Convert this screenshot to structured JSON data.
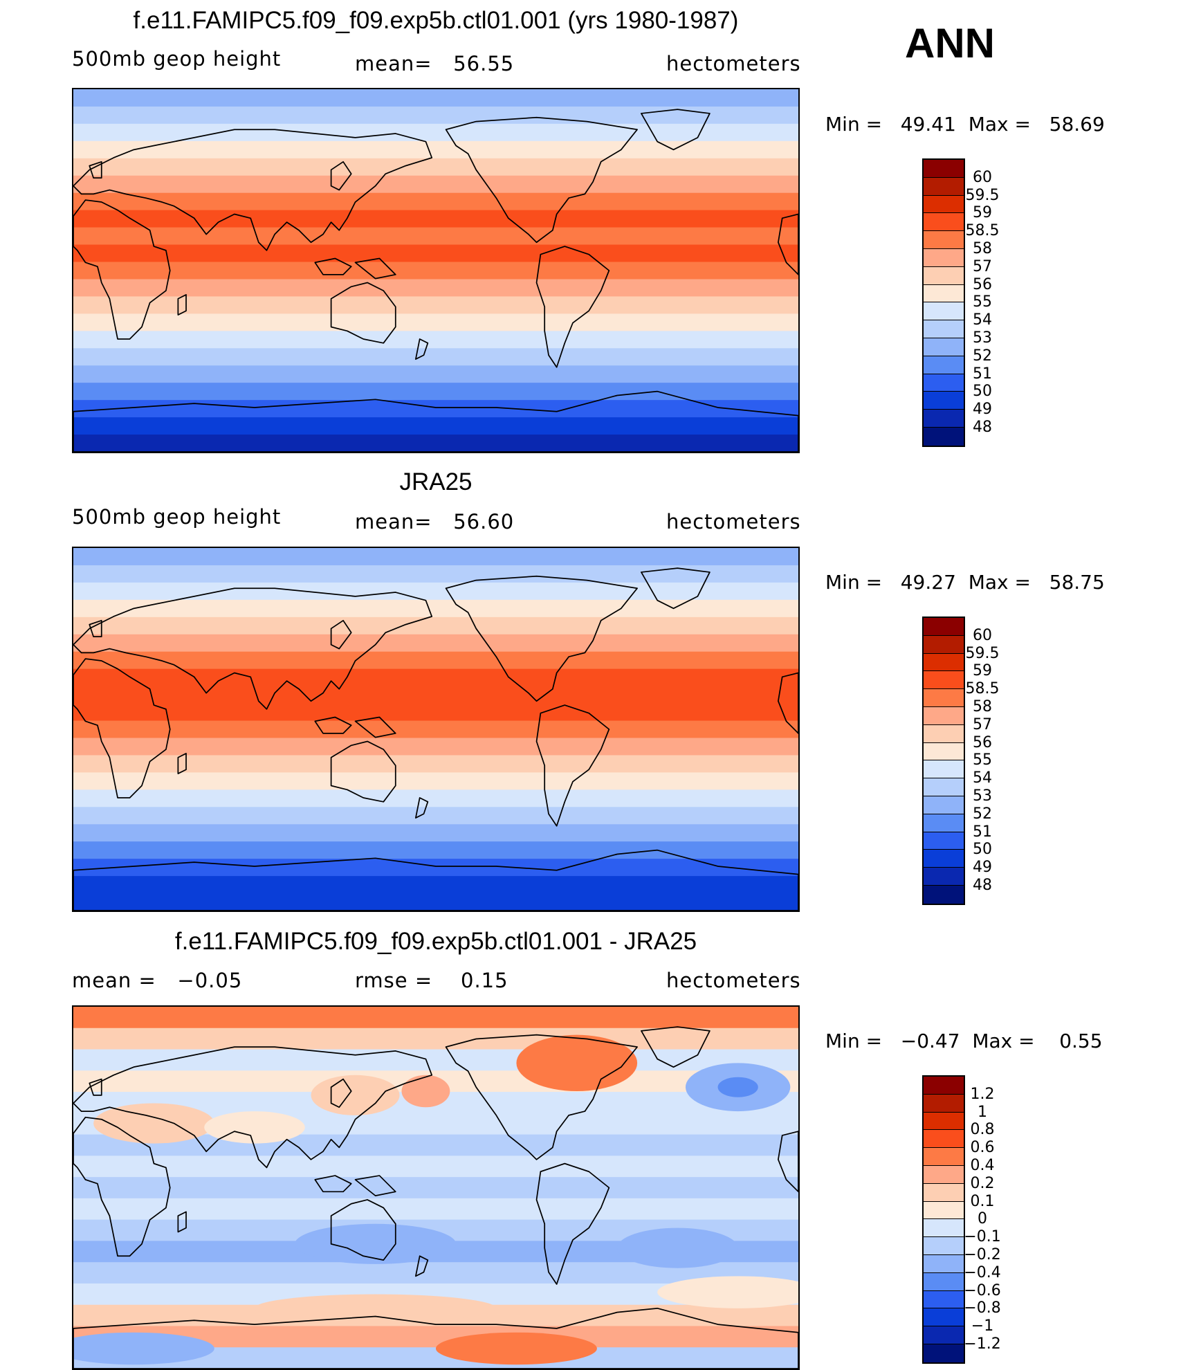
{
  "season": "ANN",
  "units": "hectometers",
  "panels": [
    {
      "title": "f.e11.FAMIPC5.f09_f09.exp5b.ctl01.001 (yrs 1980-1987)",
      "left_label": "500mb geop height",
      "center_label": "mean=   56.55",
      "right_label": "hectometers",
      "minmax": "Min =   49.41  Max =   58.69",
      "colorbar_labels": [
        "60",
        "59.5",
        "59",
        "58.5",
        "58",
        "57",
        "56",
        "55",
        "54",
        "53",
        "52",
        "51",
        "50",
        "49",
        "48"
      ],
      "colorbar_colors": [
        "#8b0000",
        "#b31c00",
        "#dc2e00",
        "#fa4e1c",
        "#fd7a45",
        "#fea888",
        "#fdcfb3",
        "#fde8d6",
        "#d6e6fc",
        "#b5cffb",
        "#8fb3f9",
        "#5a8cf4",
        "#2c5ef0",
        "#0a3ed8",
        "#0a28b0",
        "#00127a"
      ],
      "band_colors_north_to_south": [
        "#8fb3f9",
        "#b5cffb",
        "#d6e6fc",
        "#fde8d6",
        "#fdcfb3",
        "#fea888",
        "#fd7a45",
        "#fa4e1c",
        "#fd7a45",
        "#fa4e1c",
        "#fd7a45",
        "#fea888",
        "#fdcfb3",
        "#fde8d6",
        "#d6e6fc",
        "#b5cffb",
        "#8fb3f9",
        "#5a8cf4",
        "#2c5ef0",
        "#0a3ed8",
        "#0a28b0"
      ]
    },
    {
      "title": "JRA25",
      "left_label": "500mb geop height",
      "center_label": "mean=   56.60",
      "right_label": "hectometers",
      "minmax": "Min =   49.27  Max =   58.75",
      "colorbar_labels": [
        "60",
        "59.5",
        "59",
        "58.5",
        "58",
        "57",
        "56",
        "55",
        "54",
        "53",
        "52",
        "51",
        "50",
        "49",
        "48"
      ],
      "colorbar_colors": [
        "#8b0000",
        "#b31c00",
        "#dc2e00",
        "#fa4e1c",
        "#fd7a45",
        "#fea888",
        "#fdcfb3",
        "#fde8d6",
        "#d6e6fc",
        "#b5cffb",
        "#8fb3f9",
        "#5a8cf4",
        "#2c5ef0",
        "#0a3ed8",
        "#0a28b0",
        "#00127a"
      ],
      "band_colors_north_to_south": [
        "#8fb3f9",
        "#b5cffb",
        "#d6e6fc",
        "#fde8d6",
        "#fdcfb3",
        "#fea888",
        "#fd7a45",
        "#fa4e1c",
        "#fa4e1c",
        "#fa4e1c",
        "#fd7a45",
        "#fea888",
        "#fdcfb3",
        "#fde8d6",
        "#d6e6fc",
        "#b5cffb",
        "#8fb3f9",
        "#5a8cf4",
        "#2c5ef0",
        "#0a3ed8",
        "#0a3ed8"
      ]
    },
    {
      "title": "f.e11.FAMIPC5.f09_f09.exp5b.ctl01.001 - JRA25",
      "left_label": "mean =   −0.05",
      "center_label": "rmse =    0.15",
      "right_label": "hectometers",
      "minmax": "Min =   −0.47  Max =    0.55",
      "colorbar_labels": [
        "1.2",
        "1",
        "0.8",
        "0.6",
        "0.4",
        "0.2",
        "0.1",
        "0",
        "−0.1",
        "−0.2",
        "−0.4",
        "−0.6",
        "−0.8",
        "−1",
        "−1.2"
      ],
      "colorbar_colors": [
        "#8b0000",
        "#b31c00",
        "#dc2e00",
        "#fa4e1c",
        "#fd7a45",
        "#fea888",
        "#fdcfb3",
        "#fde8d6",
        "#d6e6fc",
        "#b5cffb",
        "#8fb3f9",
        "#5a8cf4",
        "#2c5ef0",
        "#0a3ed8",
        "#0a28b0",
        "#00127a"
      ],
      "band_colors_north_to_south": [
        "#fd7a45",
        "#fdcfb3",
        "#d6e6fc",
        "#fde8d6",
        "#d6e6fc",
        "#d6e6fc",
        "#b5cffb",
        "#d6e6fc",
        "#b5cffb",
        "#d6e6fc",
        "#b5cffb",
        "#8fb3f9",
        "#b5cffb",
        "#d6e6fc",
        "#fdcfb3",
        "#fea888",
        "#b5cffb"
      ]
    }
  ]
}
